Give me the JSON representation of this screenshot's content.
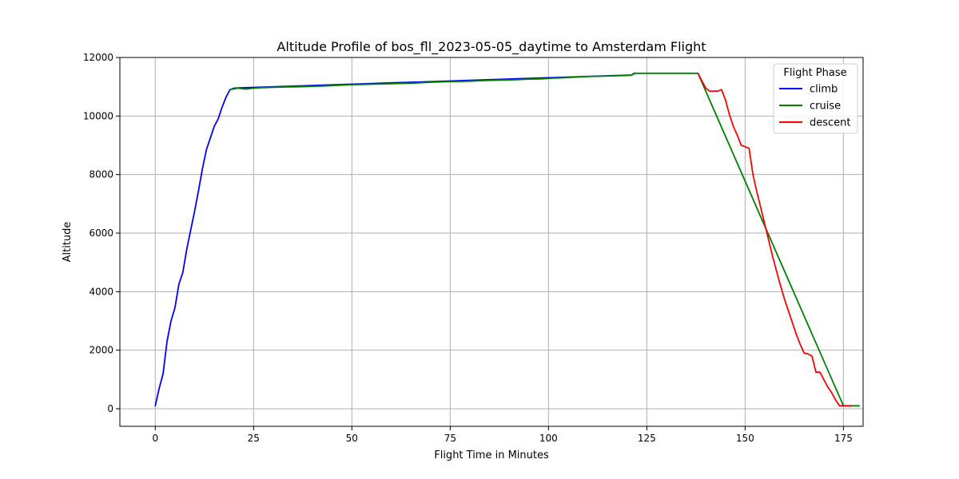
{
  "chart_data": {
    "type": "line",
    "title": "Altitude Profile of bos_fll_2023-05-05_daytime to Amsterdam Flight",
    "xlabel": "Flight Time in Minutes",
    "ylabel": "Altitude",
    "xlim": [
      -9,
      180
    ],
    "ylim": [
      -600,
      12000
    ],
    "xticks": [
      0,
      25,
      50,
      75,
      100,
      125,
      150,
      175
    ],
    "yticks": [
      0,
      2000,
      4000,
      6000,
      8000,
      10000,
      12000
    ],
    "grid": true,
    "legend": {
      "title": "Flight Phase",
      "position": "top-right"
    },
    "series": [
      {
        "name": "climb",
        "color": "#0000ff",
        "points": [
          [
            0,
            100
          ],
          [
            1,
            700
          ],
          [
            2,
            1200
          ],
          [
            3,
            2300
          ],
          [
            4,
            3000
          ],
          [
            5,
            3450
          ],
          [
            6,
            4250
          ],
          [
            7,
            4650
          ],
          [
            8,
            5450
          ],
          [
            9,
            6100
          ],
          [
            10,
            6750
          ],
          [
            11,
            7450
          ],
          [
            12,
            8200
          ],
          [
            13,
            8850
          ],
          [
            14,
            9250
          ],
          [
            15,
            9650
          ],
          [
            16,
            9900
          ],
          [
            17,
            10300
          ],
          [
            18,
            10650
          ],
          [
            19,
            10900
          ],
          [
            20,
            10950
          ],
          [
            21,
            10960
          ],
          [
            121,
            11400
          ],
          [
            122,
            11470
          ]
        ]
      },
      {
        "name": "cruise",
        "color": "#008000",
        "points": [
          [
            19,
            10900
          ],
          [
            21,
            10950
          ],
          [
            23,
            10920
          ],
          [
            25,
            10950
          ],
          [
            27,
            10970
          ],
          [
            30,
            10980
          ],
          [
            33,
            10990
          ],
          [
            36,
            11000
          ],
          [
            39,
            11010
          ],
          [
            42,
            11020
          ],
          [
            45,
            11040
          ],
          [
            48,
            11060
          ],
          [
            50,
            11070
          ],
          [
            53,
            11080
          ],
          [
            56,
            11090
          ],
          [
            59,
            11100
          ],
          [
            62,
            11110
          ],
          [
            65,
            11120
          ],
          [
            68,
            11140
          ],
          [
            71,
            11160
          ],
          [
            74,
            11170
          ],
          [
            77,
            11180
          ],
          [
            80,
            11190
          ],
          [
            83,
            11210
          ],
          [
            86,
            11220
          ],
          [
            89,
            11230
          ],
          [
            92,
            11240
          ],
          [
            95,
            11260
          ],
          [
            98,
            11270
          ],
          [
            101,
            11290
          ],
          [
            104,
            11310
          ],
          [
            107,
            11330
          ],
          [
            110,
            11350
          ],
          [
            113,
            11360
          ],
          [
            116,
            11370
          ],
          [
            119,
            11380
          ],
          [
            121,
            11390
          ],
          [
            122,
            11460
          ],
          [
            125,
            11460
          ],
          [
            130,
            11460
          ],
          [
            135,
            11460
          ],
          [
            138,
            11460
          ],
          [
            175,
            100
          ],
          [
            179,
            100
          ]
        ]
      },
      {
        "name": "descent",
        "color": "#ff0000",
        "points": [
          [
            138,
            11460
          ],
          [
            139,
            11200
          ],
          [
            140,
            10950
          ],
          [
            141,
            10850
          ],
          [
            142,
            10850
          ],
          [
            143,
            10850
          ],
          [
            144,
            10900
          ],
          [
            145,
            10550
          ],
          [
            146,
            10050
          ],
          [
            147,
            9650
          ],
          [
            148,
            9350
          ],
          [
            149,
            9000
          ],
          [
            150,
            8950
          ],
          [
            151,
            8900
          ],
          [
            152,
            8000
          ],
          [
            153,
            7400
          ],
          [
            154,
            6850
          ],
          [
            155,
            6300
          ],
          [
            156,
            5750
          ],
          [
            157,
            5200
          ],
          [
            158,
            4700
          ],
          [
            159,
            4200
          ],
          [
            160,
            3750
          ],
          [
            161,
            3350
          ],
          [
            162,
            2950
          ],
          [
            163,
            2550
          ],
          [
            164,
            2200
          ],
          [
            165,
            1900
          ],
          [
            166,
            1870
          ],
          [
            167,
            1800
          ],
          [
            168,
            1250
          ],
          [
            169,
            1250
          ],
          [
            170,
            1000
          ],
          [
            171,
            750
          ],
          [
            172,
            550
          ],
          [
            173,
            300
          ],
          [
            174,
            100
          ],
          [
            175,
            100
          ],
          [
            176,
            100
          ],
          [
            177,
            100
          ]
        ]
      }
    ]
  }
}
